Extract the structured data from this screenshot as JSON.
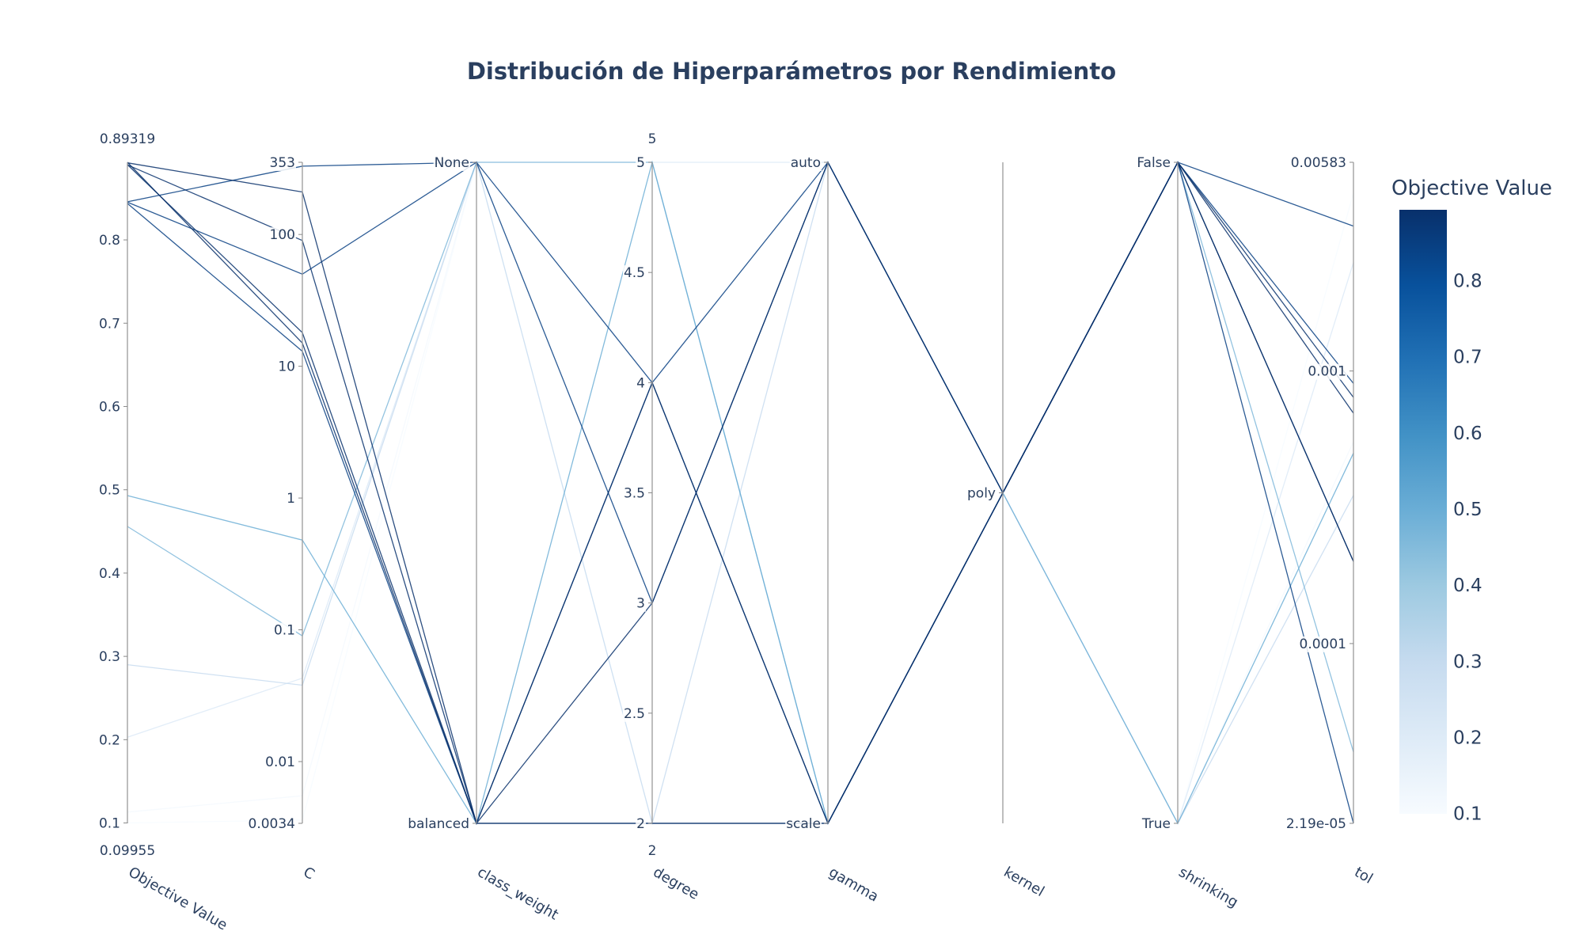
{
  "chart_data": {
    "type": "parallel_coordinates",
    "title": "Distribución de Hiperparámetros por Rendimiento",
    "dimensions": [
      {
        "label": "Objective Value",
        "kind": "linear",
        "range": [
          0.09955,
          0.89319
        ],
        "range_labels": [
          "0.09955",
          "0.89319"
        ],
        "ticks": [
          0.1,
          0.2,
          0.3,
          0.4,
          0.5,
          0.6,
          0.7,
          0.8
        ],
        "tick_labels": [
          "0.1",
          "0.2",
          "0.3",
          "0.4",
          "0.5",
          "0.6",
          "0.7",
          "0.8"
        ]
      },
      {
        "label": "C",
        "kind": "log",
        "range": [
          0.0034,
          353
        ],
        "ticks": [
          0.0034,
          0.01,
          0.1,
          1,
          10,
          100,
          353
        ],
        "tick_labels": [
          "0.0034",
          "0.01",
          "0.1",
          "1",
          "10",
          "100",
          "353"
        ]
      },
      {
        "label": "class_weight",
        "kind": "categorical",
        "categories": [
          "balanced",
          "None"
        ]
      },
      {
        "label": "degree",
        "kind": "linear",
        "range": [
          2,
          5
        ],
        "range_labels": [
          "2",
          "5"
        ],
        "ticks": [
          2,
          2.5,
          3,
          3.5,
          4,
          4.5,
          5
        ],
        "tick_labels": [
          "2",
          "2.5",
          "3",
          "3.5",
          "4",
          "4.5",
          "5"
        ]
      },
      {
        "label": "gamma",
        "kind": "categorical",
        "categories": [
          "scale",
          "auto"
        ]
      },
      {
        "label": "kernel",
        "kind": "categorical",
        "categories": [
          "poly"
        ]
      },
      {
        "label": "shrinking",
        "kind": "categorical",
        "categories": [
          "True",
          "False"
        ]
      },
      {
        "label": "tol",
        "kind": "log",
        "range": [
          2.19e-05,
          0.00583
        ],
        "ticks": [
          2.19e-05,
          0.0001,
          0.001,
          0.00583
        ],
        "tick_labels": [
          "2.19e-05",
          "0.0001",
          "0.001",
          "0.00583"
        ]
      }
    ],
    "trials": [
      {
        "objective": 0.8932,
        "C": 15,
        "class_weight": "balanced",
        "degree": 3,
        "gamma": "auto",
        "kernel": "poly",
        "shrinking": "False",
        "tol": 0.0002
      },
      {
        "objective": 0.8925,
        "C": 210,
        "class_weight": "balanced",
        "degree": 4,
        "gamma": "scale",
        "kernel": "poly",
        "shrinking": "False",
        "tol": 0.0007
      },
      {
        "objective": 0.8903,
        "C": 18,
        "class_weight": "balanced",
        "degree": 2,
        "gamma": "scale",
        "kernel": "poly",
        "shrinking": "False",
        "tol": 0.0008
      },
      {
        "objective": 0.8901,
        "C": 90,
        "class_weight": "balanced",
        "degree": 2,
        "gamma": "scale",
        "kernel": "poly",
        "shrinking": "False",
        "tol": 0.0002
      },
      {
        "objective": 0.8458,
        "C": 330,
        "class_weight": "None",
        "degree": 4,
        "gamma": "scale",
        "kernel": "poly",
        "shrinking": "False",
        "tol": 0.0034
      },
      {
        "objective": 0.8453,
        "C": 50,
        "class_weight": "None",
        "degree": 3,
        "gamma": "auto",
        "kernel": "poly",
        "shrinking": "False",
        "tol": 0.0009
      },
      {
        "objective": 0.8438,
        "C": 13,
        "class_weight": "balanced",
        "degree": 4,
        "gamma": "auto",
        "kernel": "poly",
        "shrinking": "False",
        "tol": 2.19e-05
      },
      {
        "objective": 0.493,
        "C": 0.48,
        "class_weight": "balanced",
        "degree": 5,
        "gamma": "scale",
        "kernel": "poly",
        "shrinking": "True",
        "tol": 0.0005
      },
      {
        "objective": 0.456,
        "C": 0.09,
        "class_weight": "None",
        "degree": 5,
        "gamma": "scale",
        "kernel": "poly",
        "shrinking": "False",
        "tol": 4e-05
      },
      {
        "objective": 0.29,
        "C": 0.038,
        "class_weight": "None",
        "degree": 2,
        "gamma": "auto",
        "kernel": "poly",
        "shrinking": "True",
        "tol": 0.00035
      },
      {
        "objective": 0.203,
        "C": 0.043,
        "class_weight": "None",
        "degree": 5,
        "gamma": "auto",
        "kernel": "poly",
        "shrinking": "True",
        "tol": 0.0025
      },
      {
        "objective": 0.113,
        "C": 0.0055,
        "class_weight": "None",
        "degree": 3,
        "gamma": "auto",
        "kernel": "poly",
        "shrinking": "True",
        "tol": 0.00055
      },
      {
        "objective": 0.1,
        "C": 0.0036,
        "class_weight": "None",
        "degree": 2,
        "gamma": "scale",
        "kernel": "poly",
        "shrinking": "True",
        "tol": 0.0045
      }
    ],
    "colorbar": {
      "title": "Objective Value",
      "colorscale": "Blues",
      "range": [
        0.09955,
        0.89319
      ],
      "ticks": [
        0.1,
        0.2,
        0.3,
        0.4,
        0.5,
        0.6,
        0.7,
        0.8
      ],
      "tick_labels": [
        "0.1",
        "0.2",
        "0.3",
        "0.4",
        "0.5",
        "0.6",
        "0.7",
        "0.8"
      ]
    },
    "grid": false
  }
}
